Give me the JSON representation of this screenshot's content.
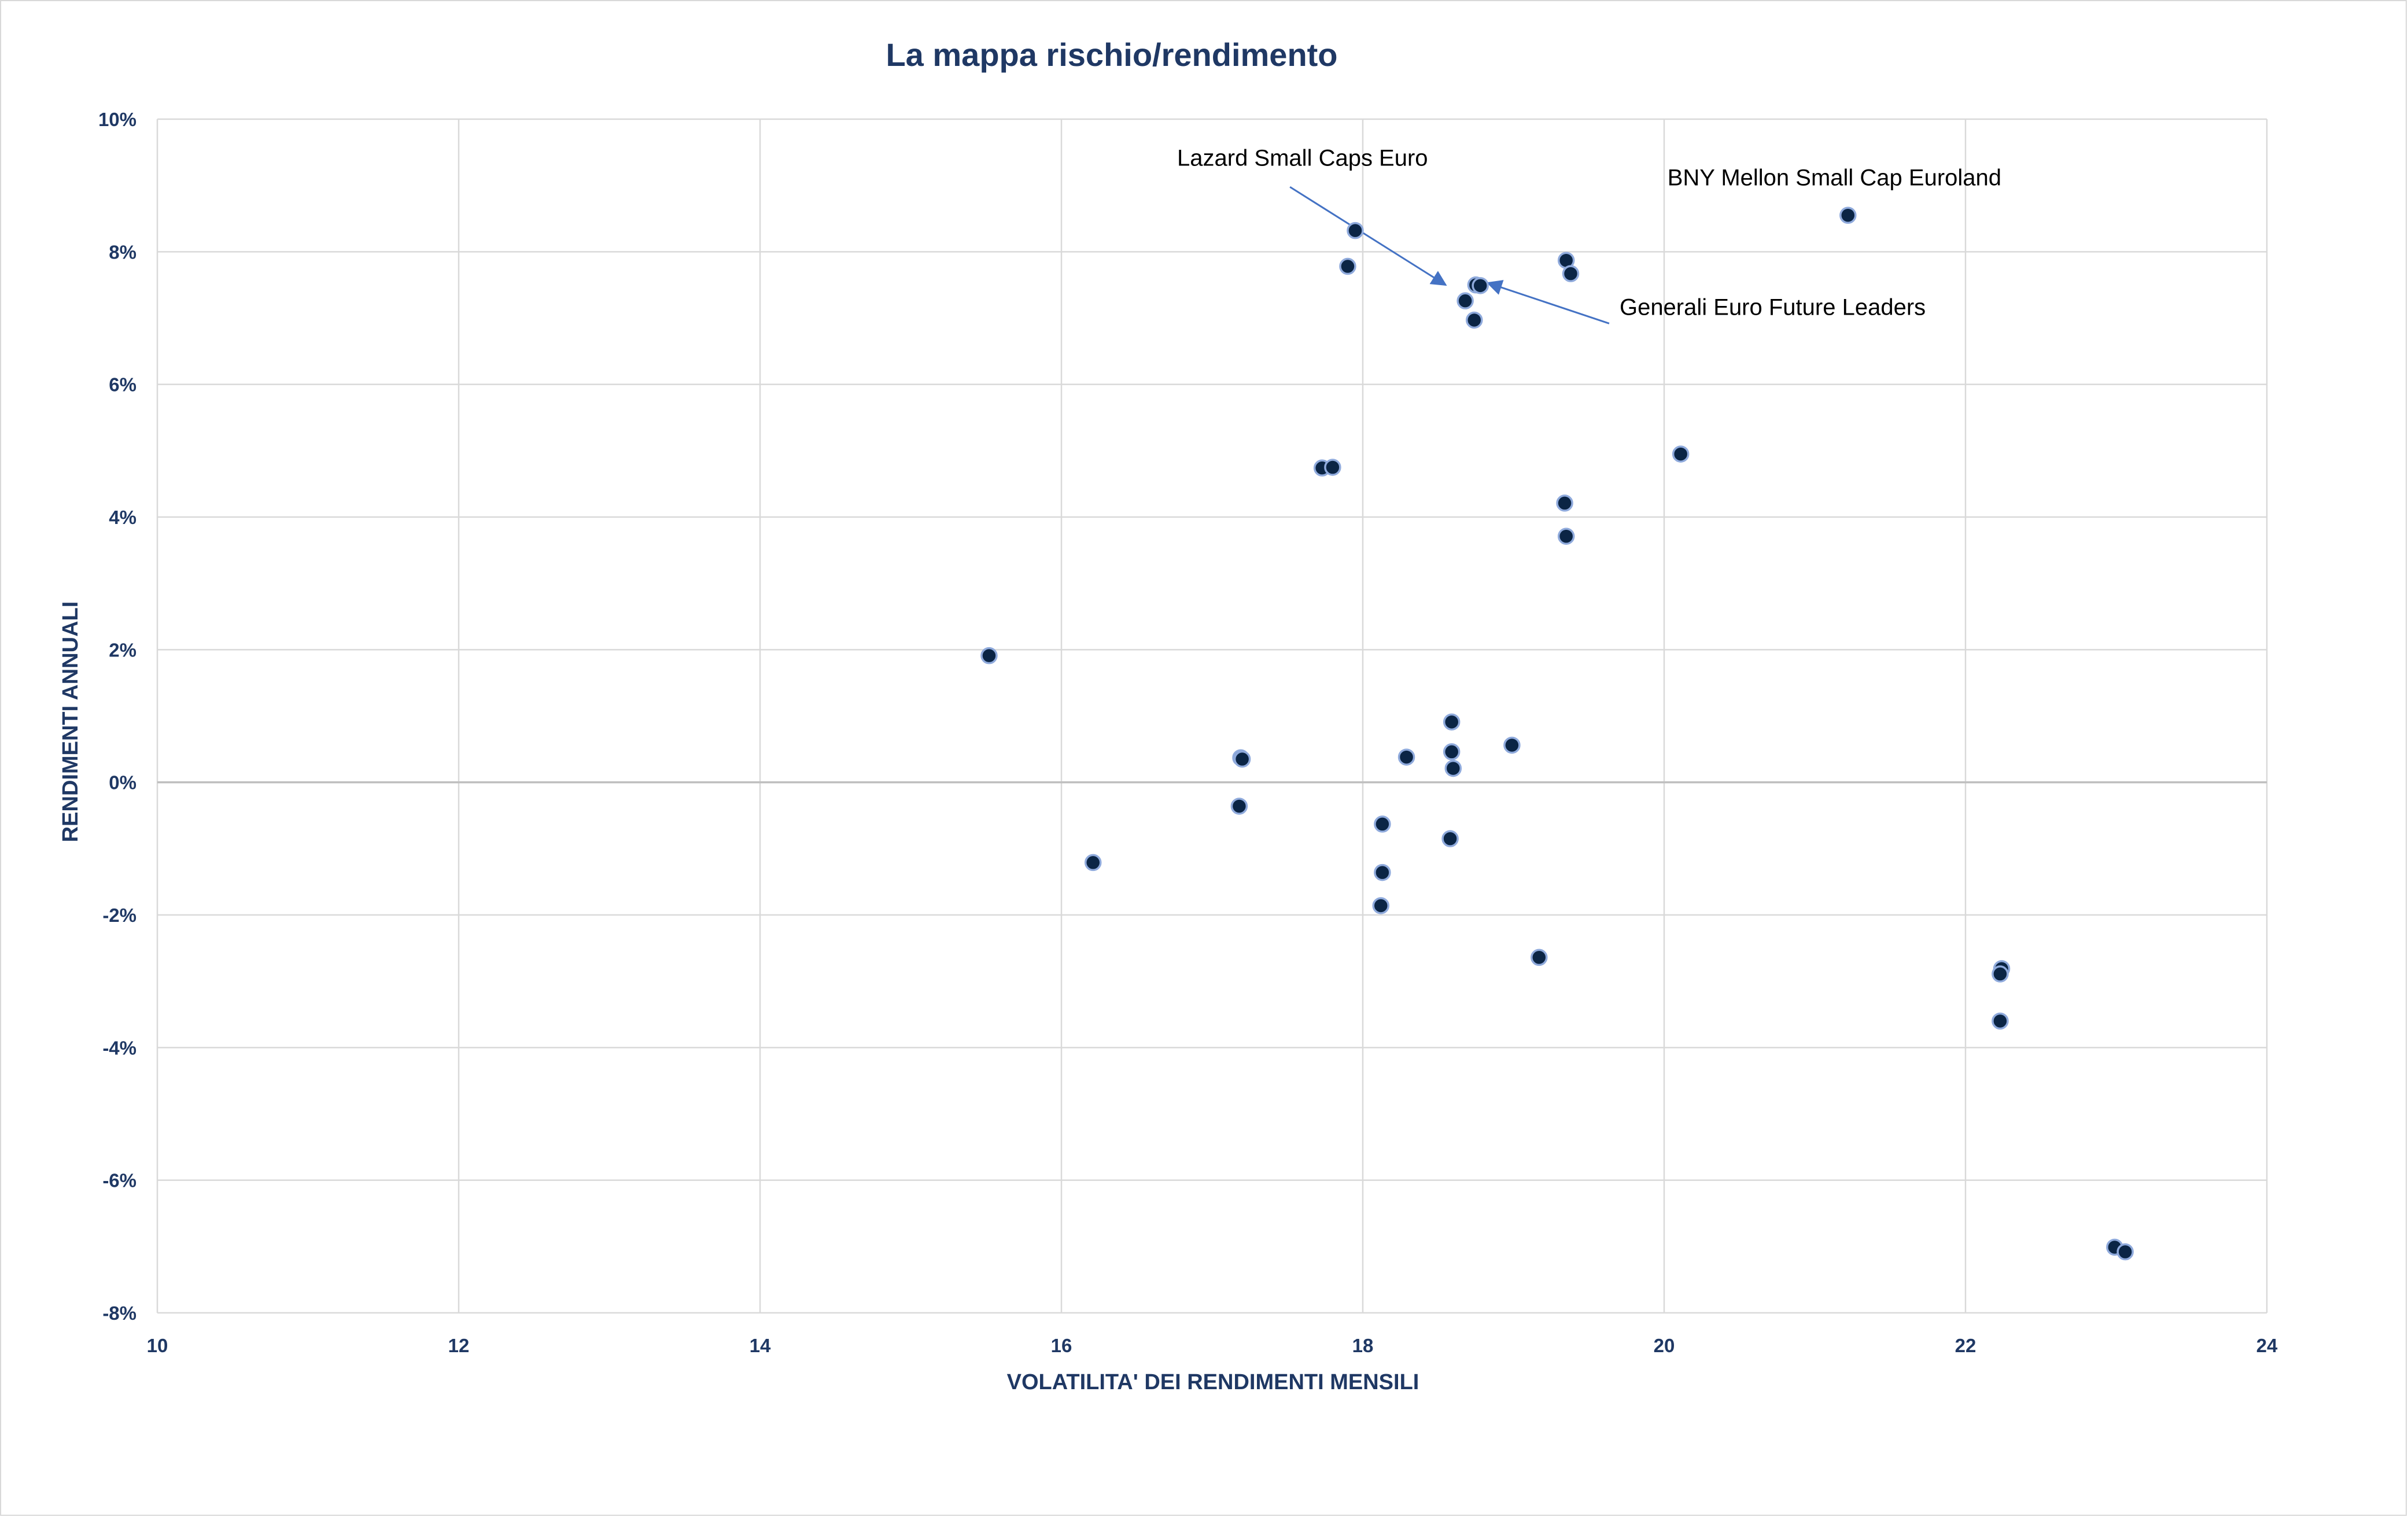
{
  "chart_data": {
    "type": "scatter",
    "title": "La mappa rischio/rendimento",
    "xlabel": "VOLATILITA' DEI RENDIMENTI MENSILI",
    "ylabel": "RENDIMENTI ANNUALI",
    "xlim": [
      10,
      24
    ],
    "ylim": [
      -8,
      10
    ],
    "x_ticks": [
      10,
      12,
      14,
      16,
      18,
      20,
      22,
      24
    ],
    "y_ticks": [
      10,
      8,
      6,
      4,
      2,
      0,
      -2,
      -4,
      -6,
      -8
    ],
    "x_tick_labels": [
      "10",
      "12",
      "14",
      "16",
      "18",
      "20",
      "22",
      "24"
    ],
    "y_tick_labels": [
      "10%",
      "8%",
      "6%",
      "4%",
      "2%",
      "0%",
      "-2%",
      "-4%",
      "-6%",
      "-8%"
    ],
    "grid": true,
    "legend": "none",
    "marker_color": "#0b2545",
    "marker_edge_color": "#8faadc",
    "points": [
      {
        "x": 21.22,
        "y": 8.55
      },
      {
        "x": 17.95,
        "y": 8.32
      },
      {
        "x": 17.9,
        "y": 7.78
      },
      {
        "x": 19.35,
        "y": 7.87
      },
      {
        "x": 19.38,
        "y": 7.67
      },
      {
        "x": 18.75,
        "y": 7.5
      },
      {
        "x": 18.78,
        "y": 7.49
      },
      {
        "x": 18.68,
        "y": 7.26
      },
      {
        "x": 18.74,
        "y": 6.97
      },
      {
        "x": 20.11,
        "y": 4.95
      },
      {
        "x": 17.73,
        "y": 4.74
      },
      {
        "x": 17.8,
        "y": 4.75
      },
      {
        "x": 19.34,
        "y": 4.21
      },
      {
        "x": 19.35,
        "y": 3.71
      },
      {
        "x": 15.52,
        "y": 1.91
      },
      {
        "x": 18.59,
        "y": 0.91
      },
      {
        "x": 18.99,
        "y": 0.56
      },
      {
        "x": 18.59,
        "y": 0.46
      },
      {
        "x": 18.29,
        "y": 0.38
      },
      {
        "x": 17.19,
        "y": 0.37
      },
      {
        "x": 17.2,
        "y": 0.35
      },
      {
        "x": 18.6,
        "y": 0.21
      },
      {
        "x": 17.18,
        "y": -0.36
      },
      {
        "x": 18.13,
        "y": -0.63
      },
      {
        "x": 18.58,
        "y": -0.85
      },
      {
        "x": 16.21,
        "y": -1.21
      },
      {
        "x": 18.13,
        "y": -1.36
      },
      {
        "x": 18.12,
        "y": -1.86
      },
      {
        "x": 19.17,
        "y": -2.64
      },
      {
        "x": 22.24,
        "y": -2.81
      },
      {
        "x": 22.23,
        "y": -2.89
      },
      {
        "x": 22.23,
        "y": -3.6
      },
      {
        "x": 22.99,
        "y": -7.01
      },
      {
        "x": 23.06,
        "y": -7.08
      }
    ],
    "annotations": [
      {
        "text": "BNY Mellon Small Cap Euroland",
        "x": 21.13,
        "y": 9.0,
        "target": null
      },
      {
        "text": "Lazard Small Caps Euro",
        "x": 17.6,
        "y": 9.3,
        "target": {
          "x": 18.55,
          "y": 7.5
        }
      },
      {
        "text": "Generali Euro Future Leaders",
        "x": 20.72,
        "y": 7.05,
        "target": {
          "x": 18.83,
          "y": 7.53
        }
      }
    ]
  }
}
